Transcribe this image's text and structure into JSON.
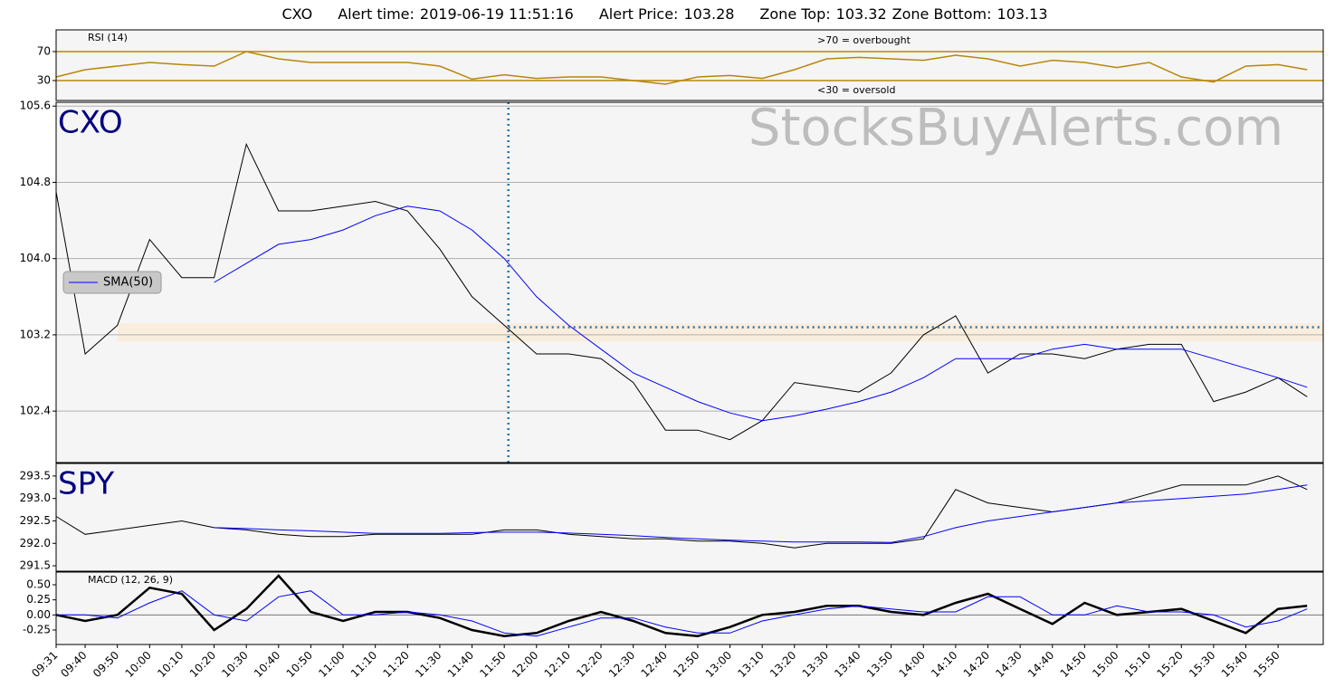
{
  "header": {
    "symbol": "CXO",
    "alert_time_label": "Alert time:",
    "alert_time": "2019-06-19 11:51:16",
    "alert_price_label": "Alert Price:",
    "alert_price": 103.28,
    "zone_top_label": "Zone Top:",
    "zone_top": 103.32,
    "zone_bottom_label": "Zone Bottom:",
    "zone_bottom": 103.13,
    "watermark": "StocksBuyAlerts.com"
  },
  "time_axis": {
    "x": [
      0,
      9,
      19,
      29,
      39,
      49,
      59,
      69,
      79,
      89,
      99,
      109,
      119,
      129,
      139,
      149,
      159,
      169,
      179,
      189,
      199,
      209,
      219,
      229,
      239,
      249,
      259,
      269,
      279,
      289,
      299,
      309,
      319,
      329,
      339,
      349,
      359,
      369,
      379,
      388
    ],
    "xlim": [
      0,
      393
    ],
    "xticks": [
      {
        "value": 0,
        "label": "09:31"
      },
      {
        "value": 9,
        "label": "09:40"
      },
      {
        "value": 19,
        "label": "09:50"
      },
      {
        "value": 29,
        "label": "10:00"
      },
      {
        "value": 39,
        "label": "10:10"
      },
      {
        "value": 49,
        "label": "10:20"
      },
      {
        "value": 59,
        "label": "10:30"
      },
      {
        "value": 69,
        "label": "10:40"
      },
      {
        "value": 79,
        "label": "10:50"
      },
      {
        "value": 89,
        "label": "11:00"
      },
      {
        "value": 99,
        "label": "11:10"
      },
      {
        "value": 109,
        "label": "11:20"
      },
      {
        "value": 119,
        "label": "11:30"
      },
      {
        "value": 129,
        "label": "11:40"
      },
      {
        "value": 139,
        "label": "11:50"
      },
      {
        "value": 149,
        "label": "12:00"
      },
      {
        "value": 159,
        "label": "12:10"
      },
      {
        "value": 169,
        "label": "12:20"
      },
      {
        "value": 179,
        "label": "12:30"
      },
      {
        "value": 189,
        "label": "12:40"
      },
      {
        "value": 199,
        "label": "12:50"
      },
      {
        "value": 209,
        "label": "13:00"
      },
      {
        "value": 219,
        "label": "13:10"
      },
      {
        "value": 229,
        "label": "13:20"
      },
      {
        "value": 239,
        "label": "13:30"
      },
      {
        "value": 249,
        "label": "13:40"
      },
      {
        "value": 259,
        "label": "13:50"
      },
      {
        "value": 269,
        "label": "14:00"
      },
      {
        "value": 279,
        "label": "14:10"
      },
      {
        "value": 289,
        "label": "14:20"
      },
      {
        "value": 299,
        "label": "14:30"
      },
      {
        "value": 309,
        "label": "14:40"
      },
      {
        "value": 319,
        "label": "14:50"
      },
      {
        "value": 329,
        "label": "15:00"
      },
      {
        "value": 339,
        "label": "15:10"
      },
      {
        "value": 349,
        "label": "15:20"
      },
      {
        "value": 359,
        "label": "15:30"
      },
      {
        "value": 369,
        "label": "15:40"
      },
      {
        "value": 379,
        "label": "15:50"
      }
    ]
  },
  "chart_data": [
    {
      "type": "line",
      "title": "RSI (14)",
      "annotations": [
        ">70 = overbought",
        "<30 = oversold"
      ],
      "ylim": [
        2.5,
        100
      ],
      "yticks": [
        30,
        70
      ],
      "color": "#b8860b",
      "values": [
        35,
        45,
        50,
        55,
        52,
        50,
        70,
        60,
        55,
        55,
        55,
        55,
        50,
        32,
        38,
        33,
        35,
        35,
        30,
        25,
        35,
        37,
        33,
        45,
        60,
        62,
        60,
        58,
        65,
        60,
        50,
        58,
        55,
        48,
        55,
        35,
        28,
        50,
        52,
        45
      ]
    },
    {
      "type": "line",
      "title": "CXO",
      "ylim": [
        101.86,
        105.64
      ],
      "grid": true,
      "color": "#000000",
      "yticks": [
        102.4,
        103.2,
        {
          "value": 104.0,
          "label": "104.0"
        },
        104.8,
        105.6
      ],
      "values": [
        104.7,
        103.0,
        103.3,
        104.2,
        103.8,
        103.8,
        105.2,
        104.5,
        104.5,
        104.55,
        104.6,
        104.5,
        104.1,
        103.6,
        103.3,
        103.0,
        103.0,
        102.95,
        102.7,
        102.2,
        102.2,
        102.1,
        102.3,
        102.7,
        102.65,
        102.6,
        102.8,
        103.2,
        103.4,
        102.8,
        103.0,
        103.0,
        102.95,
        103.05,
        103.1,
        103.1,
        102.5,
        102.6,
        102.75,
        102.55
      ],
      "sma": {
        "name": "SMA(50)",
        "color": "#0000ff",
        "values": [
          null,
          null,
          null,
          null,
          null,
          103.75,
          103.95,
          104.15,
          104.2,
          104.3,
          104.45,
          104.55,
          104.5,
          104.3,
          104.0,
          103.6,
          103.3,
          103.05,
          102.8,
          102.65,
          102.5,
          102.38,
          102.3,
          102.35,
          102.42,
          102.5,
          102.6,
          102.75,
          102.95,
          102.95,
          102.95,
          103.05,
          103.1,
          103.05,
          103.05,
          103.05,
          102.95,
          102.85,
          102.75,
          102.65
        ]
      }
    },
    {
      "type": "line",
      "title": "SPY",
      "ylim": [
        291.38,
        293.78
      ],
      "color": "#000000",
      "yticks": [
        291.5,
        {
          "value": 292.0,
          "label": "292.0"
        },
        292.5,
        {
          "value": 293.0,
          "label": "293.0"
        },
        293.5
      ],
      "values": [
        292.6,
        292.2,
        292.3,
        292.4,
        292.5,
        292.35,
        292.3,
        292.2,
        292.15,
        292.15,
        292.2,
        292.2,
        292.2,
        292.2,
        292.3,
        292.3,
        292.2,
        292.15,
        292.1,
        292.1,
        292.05,
        292.05,
        292.0,
        291.9,
        292.0,
        292.0,
        292.0,
        292.1,
        293.2,
        292.9,
        292.8,
        292.7,
        292.8,
        292.9,
        293.1,
        293.3,
        293.3,
        293.3,
        293.5,
        293.2
      ],
      "sma": {
        "color": "#0000ff",
        "values": [
          null,
          null,
          null,
          null,
          null,
          292.35,
          292.33,
          292.3,
          292.28,
          292.25,
          292.22,
          292.22,
          292.22,
          292.24,
          292.25,
          292.25,
          292.23,
          292.2,
          292.17,
          292.13,
          292.1,
          292.07,
          292.05,
          292.03,
          292.03,
          292.03,
          292.02,
          292.15,
          292.35,
          292.5,
          292.6,
          292.7,
          292.8,
          292.9,
          292.95,
          293.0,
          293.05,
          293.1,
          293.2,
          293.3
        ]
      }
    },
    {
      "type": "line",
      "title": "MACD (12, 26, 9)",
      "ylim": [
        -0.49,
        0.71
      ],
      "yticks": [
        {
          "value": -0.25,
          "label": "-0.25"
        },
        {
          "value": 0,
          "label": "0.00"
        },
        {
          "value": 0.25,
          "label": "0.25"
        },
        {
          "value": 0.5,
          "label": "0.50"
        }
      ],
      "series": [
        {
          "color": "#000000",
          "values": [
            0,
            -0.1,
            0,
            0.45,
            0.35,
            -0.25,
            0.1,
            0.65,
            0.05,
            -0.1,
            0.05,
            0.05,
            -0.05,
            -0.25,
            -0.35,
            -0.3,
            -0.1,
            0.05,
            -0.1,
            -0.3,
            -0.35,
            -0.2,
            0,
            0.05,
            0.15,
            0.15,
            0.05,
            0.0,
            0.2,
            0.35,
            0.1,
            -0.15,
            0.2,
            0.0,
            0.05,
            0.1,
            -0.1,
            -0.3,
            0.1,
            0.15
          ]
        },
        {
          "color": "#0000ff",
          "values": [
            0,
            0,
            -0.05,
            0.2,
            0.4,
            0.0,
            -0.1,
            0.3,
            0.4,
            0.0,
            0.0,
            0.05,
            0.0,
            -0.1,
            -0.3,
            -0.35,
            -0.2,
            -0.05,
            -0.05,
            -0.2,
            -0.3,
            -0.3,
            -0.1,
            0.0,
            0.1,
            0.15,
            0.1,
            0.05,
            0.05,
            0.3,
            0.3,
            0.0,
            0.0,
            0.15,
            0.05,
            0.05,
            0.0,
            -0.2,
            -0.1,
            0.1
          ]
        }
      ]
    }
  ]
}
